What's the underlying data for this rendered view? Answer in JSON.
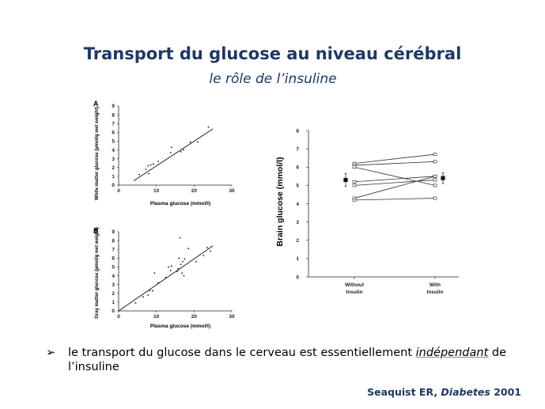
{
  "slide": {
    "title": "Transport du glucose au niveau cérébral",
    "subtitle": "le rôle de l’insuline",
    "bullet_marker": "➢",
    "bullet_before": "le transport du glucose dans le cerveau est essentiellement ",
    "bullet_emphasis": "indépendant",
    "bullet_after": " de l’insuline",
    "citation_authors": "Seaquist ER, ",
    "citation_journal": "Diabetes",
    "citation_year": " 2001"
  },
  "chart_data": [
    {
      "type": "scatter",
      "panel": "A",
      "xlabel": "Plasma glucose (mmol/l)",
      "ylabel": "White matter glucose (µmol/g wet weight)",
      "xlim": [
        0,
        30
      ],
      "ylim": [
        0,
        9
      ],
      "xticks": [
        "0",
        "10",
        "20",
        "30"
      ],
      "yticks": [
        "0",
        "1",
        "2",
        "3",
        "4",
        "5",
        "6",
        "7",
        "8",
        "9"
      ],
      "points": [
        [
          5.5,
          1.2
        ],
        [
          7.2,
          1.8
        ],
        [
          7.8,
          2.2
        ],
        [
          8,
          1.3
        ],
        [
          8.5,
          2.3
        ],
        [
          9.2,
          2.4
        ],
        [
          10.5,
          2.7
        ],
        [
          13.8,
          3.7
        ],
        [
          14,
          4.3
        ],
        [
          16.5,
          3.8
        ],
        [
          17.2,
          4.0
        ],
        [
          19,
          4.9
        ],
        [
          21,
          4.9
        ],
        [
          23.8,
          6.6
        ]
      ],
      "fit_line": [
        [
          4,
          0.5
        ],
        [
          25,
          6.4
        ]
      ],
      "grid": false
    },
    {
      "type": "scatter",
      "panel": "B",
      "xlabel": "Plasma glucose (mmol/l)",
      "ylabel": "Gray matter glucose (µmol/g wet weight)",
      "xlim": [
        0,
        30
      ],
      "ylim": [
        0,
        9
      ],
      "xticks": [
        "0",
        "10",
        "20",
        "30"
      ],
      "yticks": [
        "0",
        "1",
        "2",
        "3",
        "4",
        "5",
        "6",
        "7",
        "8",
        "9"
      ],
      "points": [
        [
          4.5,
          0.9
        ],
        [
          6.5,
          1.6
        ],
        [
          7.8,
          1.8
        ],
        [
          8.3,
          2.3
        ],
        [
          9,
          2.3
        ],
        [
          9.5,
          4.3
        ],
        [
          10.5,
          3.2
        ],
        [
          12.5,
          3.8
        ],
        [
          13.2,
          5.0
        ],
        [
          13.8,
          4.6
        ],
        [
          14,
          5.1
        ],
        [
          15.5,
          4.5
        ],
        [
          15.8,
          4.8
        ],
        [
          16,
          6.0
        ],
        [
          16.3,
          8.3
        ],
        [
          16.5,
          5.3
        ],
        [
          16.8,
          4.3
        ],
        [
          17,
          5.6
        ],
        [
          17.3,
          4.0
        ],
        [
          17.5,
          5.9
        ],
        [
          18.5,
          7.1
        ],
        [
          20.5,
          5.6
        ],
        [
          22.5,
          6.3
        ],
        [
          23.5,
          7.2
        ],
        [
          24.3,
          6.8
        ]
      ],
      "fit_line": [
        [
          0,
          0
        ],
        [
          25,
          7.4
        ]
      ],
      "grid": false
    },
    {
      "type": "line",
      "xlabel": "",
      "ylabel": "Brain glucose (mmol/l)",
      "categories": [
        "Without Insulin",
        "With Insulin"
      ],
      "ylim": [
        0,
        8
      ],
      "yticks": [
        "0",
        "1",
        "2",
        "3",
        "4",
        "5",
        "6",
        "7",
        "8"
      ],
      "subjects": [
        [
          6.2,
          6.7
        ],
        [
          6.1,
          6.3
        ],
        [
          6.0,
          5.0
        ],
        [
          5.2,
          5.5
        ],
        [
          5.0,
          5.3
        ],
        [
          4.3,
          5.5
        ],
        [
          4.2,
          4.3
        ]
      ],
      "mean": [
        5.3,
        5.4
      ],
      "error": [
        0.35,
        0.3
      ],
      "grid": false
    }
  ]
}
